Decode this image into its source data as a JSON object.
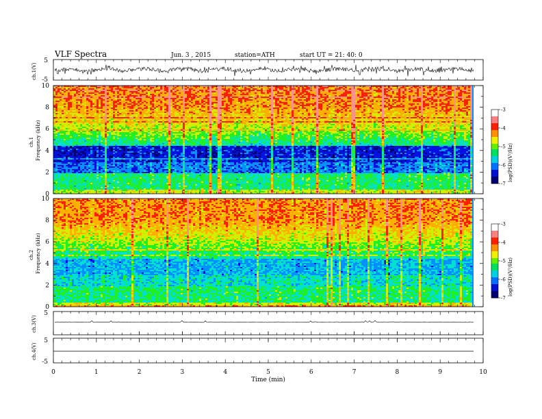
{
  "header": {
    "title": "VLF  Spectra",
    "date": "Jun. 3  , 2015",
    "station": "station=ATH",
    "start": "start  UT  =   21: 40: 0"
  },
  "chart_data": [
    {
      "type": "line",
      "name": "ch1-waveform",
      "ylabel": "ch.1(V)",
      "ylim": [
        -5,
        5
      ],
      "yticks": [
        "5",
        "-5"
      ],
      "xlim": [
        0,
        10
      ],
      "description_only": false
    },
    {
      "type": "heatmap",
      "name": "ch1-spectrogram",
      "ylabel_top": "ch.1",
      "ylabel": "Frequency  (kHz)",
      "ylim": [
        0,
        10
      ],
      "yticks": [
        "0",
        "2",
        "4",
        "6",
        "8",
        "10"
      ],
      "xlim": [
        0,
        9.8
      ],
      "colorbar": {
        "label": "log(PSD)(V²/Hz)",
        "range": [
          -7,
          -3
        ],
        "ticks": [
          "-3",
          "-4",
          "-5",
          "-6",
          "-7"
        ]
      }
    },
    {
      "type": "heatmap",
      "name": "ch2-spectrogram",
      "ylabel_top": "ch.2",
      "ylabel": "Frequency  (kHz)",
      "ylim": [
        0,
        10
      ],
      "yticks": [
        "0",
        "2",
        "4",
        "6",
        "8",
        "10"
      ],
      "xlim": [
        0,
        9.8
      ],
      "colorbar": {
        "label": "log(PSD)(V²/Hz)",
        "range": [
          -7,
          -3
        ],
        "ticks": [
          "-3",
          "-4",
          "-5",
          "-6",
          "-7"
        ]
      }
    },
    {
      "type": "line",
      "name": "ch3-waveform",
      "ylabel": "ch.3(V)",
      "ylim": [
        -5,
        5
      ],
      "yticks": [
        "5"
      ],
      "flat_value": 0
    },
    {
      "type": "line",
      "name": "ch4-waveform",
      "ylabel": "ch.4(V)",
      "ylim": [
        -5,
        5
      ],
      "yticks": [
        "5",
        "-5"
      ],
      "flat_value": 0
    }
  ],
  "xaxis": {
    "label": "Time  (min)",
    "ticks": [
      "0",
      "1",
      "2",
      "3",
      "4",
      "5",
      "6",
      "7",
      "8",
      "9",
      "10"
    ],
    "range": [
      0,
      10
    ]
  },
  "colors": {
    "spectrum": [
      "#00006e",
      "#0010e0",
      "#0090ff",
      "#00e0d0",
      "#20f020",
      "#d0f000",
      "#ffb000",
      "#ff2000",
      "#ff9090"
    ]
  }
}
